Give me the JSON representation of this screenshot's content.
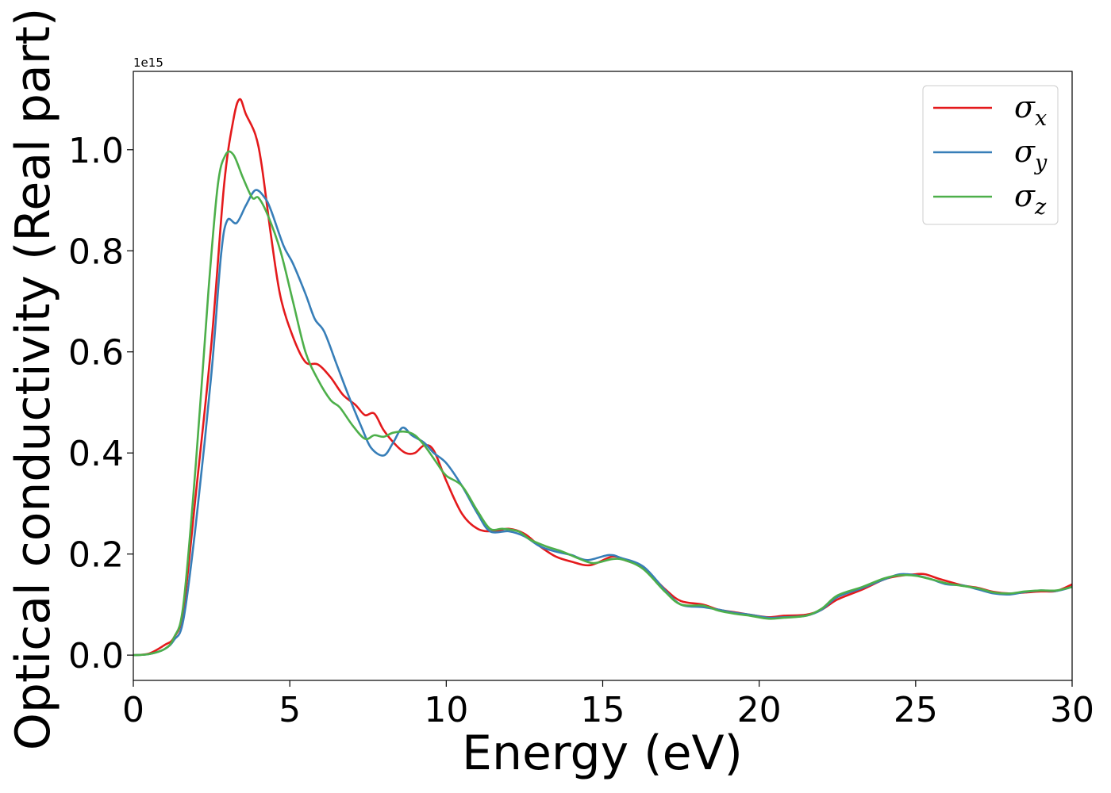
{
  "chart_data": {
    "type": "line",
    "xlabel": "Energy (eV)",
    "ylabel": "Optical conductivity (Real part)",
    "y_offset_label": "1e15",
    "xlim": [
      0,
      30
    ],
    "ylim": [
      -0.05,
      1.155
    ],
    "x_ticks": [
      0,
      5,
      10,
      15,
      20,
      25,
      30
    ],
    "x_tick_labels": [
      "0",
      "5",
      "10",
      "15",
      "20",
      "25",
      "30"
    ],
    "y_ticks": [
      0.0,
      0.2,
      0.4,
      0.6,
      0.8,
      1.0
    ],
    "y_tick_labels": [
      "0.0",
      "0.2",
      "0.4",
      "0.6",
      "0.8",
      "1.0"
    ],
    "grid": false,
    "legend_position": "top-right",
    "series": [
      {
        "name": "σx",
        "symbol": "σ",
        "subscript": "x",
        "color": "#e41a1c",
        "points": [
          [
            0,
            0
          ],
          [
            0.5,
            0.003
          ],
          [
            1.0,
            0.02
          ],
          [
            1.3,
            0.035
          ],
          [
            1.6,
            0.09
          ],
          [
            2.0,
            0.32
          ],
          [
            2.5,
            0.62
          ],
          [
            2.9,
            0.93
          ],
          [
            3.2,
            1.06
          ],
          [
            3.4,
            1.1
          ],
          [
            3.6,
            1.07
          ],
          [
            3.9,
            1.03
          ],
          [
            4.1,
            0.97
          ],
          [
            4.4,
            0.83
          ],
          [
            4.7,
            0.71
          ],
          [
            5.1,
            0.63
          ],
          [
            5.5,
            0.58
          ],
          [
            5.9,
            0.575
          ],
          [
            6.3,
            0.55
          ],
          [
            6.7,
            0.515
          ],
          [
            7.1,
            0.495
          ],
          [
            7.4,
            0.475
          ],
          [
            7.7,
            0.478
          ],
          [
            8.0,
            0.445
          ],
          [
            8.4,
            0.415
          ],
          [
            8.7,
            0.4
          ],
          [
            9.0,
            0.4
          ],
          [
            9.3,
            0.415
          ],
          [
            9.6,
            0.405
          ],
          [
            10.0,
            0.345
          ],
          [
            10.5,
            0.28
          ],
          [
            11.0,
            0.25
          ],
          [
            11.5,
            0.245
          ],
          [
            12.0,
            0.25
          ],
          [
            12.5,
            0.24
          ],
          [
            13.0,
            0.215
          ],
          [
            13.5,
            0.195
          ],
          [
            14.0,
            0.185
          ],
          [
            14.6,
            0.178
          ],
          [
            15.3,
            0.195
          ],
          [
            15.7,
            0.188
          ],
          [
            16.3,
            0.172
          ],
          [
            17.0,
            0.13
          ],
          [
            17.5,
            0.107
          ],
          [
            18.2,
            0.1
          ],
          [
            18.7,
            0.09
          ],
          [
            19.2,
            0.085
          ],
          [
            19.7,
            0.08
          ],
          [
            20.3,
            0.075
          ],
          [
            20.8,
            0.078
          ],
          [
            21.5,
            0.08
          ],
          [
            22.0,
            0.09
          ],
          [
            22.5,
            0.11
          ],
          [
            23.3,
            0.13
          ],
          [
            24.0,
            0.15
          ],
          [
            24.5,
            0.157
          ],
          [
            25.0,
            0.16
          ],
          [
            25.3,
            0.16
          ],
          [
            25.8,
            0.15
          ],
          [
            26.5,
            0.138
          ],
          [
            27.0,
            0.133
          ],
          [
            27.5,
            0.125
          ],
          [
            28.0,
            0.122
          ],
          [
            28.5,
            0.124
          ],
          [
            29.0,
            0.126
          ],
          [
            29.5,
            0.127
          ],
          [
            30,
            0.14
          ]
        ]
      },
      {
        "name": "σy",
        "symbol": "σ",
        "subscript": "y",
        "color": "#377eb8",
        "points": [
          [
            0,
            0
          ],
          [
            0.5,
            0.002
          ],
          [
            1.0,
            0.012
          ],
          [
            1.3,
            0.03
          ],
          [
            1.6,
            0.07
          ],
          [
            2.0,
            0.26
          ],
          [
            2.5,
            0.56
          ],
          [
            2.8,
            0.79
          ],
          [
            3.0,
            0.86
          ],
          [
            3.3,
            0.855
          ],
          [
            3.6,
            0.89
          ],
          [
            3.9,
            0.92
          ],
          [
            4.2,
            0.905
          ],
          [
            4.4,
            0.88
          ],
          [
            4.8,
            0.81
          ],
          [
            5.1,
            0.775
          ],
          [
            5.5,
            0.715
          ],
          [
            5.8,
            0.665
          ],
          [
            6.1,
            0.64
          ],
          [
            6.5,
            0.575
          ],
          [
            6.9,
            0.51
          ],
          [
            7.3,
            0.45
          ],
          [
            7.6,
            0.41
          ],
          [
            8.0,
            0.395
          ],
          [
            8.3,
            0.42
          ],
          [
            8.6,
            0.45
          ],
          [
            8.9,
            0.435
          ],
          [
            9.3,
            0.42
          ],
          [
            9.6,
            0.4
          ],
          [
            10.0,
            0.38
          ],
          [
            10.5,
            0.335
          ],
          [
            11.0,
            0.28
          ],
          [
            11.4,
            0.245
          ],
          [
            12.0,
            0.245
          ],
          [
            12.5,
            0.235
          ],
          [
            13.0,
            0.215
          ],
          [
            13.5,
            0.205
          ],
          [
            14.0,
            0.198
          ],
          [
            14.5,
            0.188
          ],
          [
            15.2,
            0.198
          ],
          [
            15.6,
            0.192
          ],
          [
            16.3,
            0.175
          ],
          [
            17.0,
            0.128
          ],
          [
            17.5,
            0.1
          ],
          [
            18.2,
            0.095
          ],
          [
            18.7,
            0.09
          ],
          [
            19.2,
            0.084
          ],
          [
            19.7,
            0.08
          ],
          [
            20.3,
            0.074
          ],
          [
            20.8,
            0.075
          ],
          [
            21.5,
            0.078
          ],
          [
            22.0,
            0.09
          ],
          [
            22.5,
            0.115
          ],
          [
            23.3,
            0.133
          ],
          [
            24.0,
            0.15
          ],
          [
            24.5,
            0.16
          ],
          [
            25.0,
            0.158
          ],
          [
            25.5,
            0.15
          ],
          [
            26.0,
            0.14
          ],
          [
            26.5,
            0.138
          ],
          [
            27.0,
            0.13
          ],
          [
            27.5,
            0.122
          ],
          [
            28.0,
            0.12
          ],
          [
            28.5,
            0.125
          ],
          [
            29.0,
            0.128
          ],
          [
            29.5,
            0.127
          ],
          [
            30,
            0.135
          ]
        ]
      },
      {
        "name": "σz",
        "symbol": "σ",
        "subscript": "z",
        "color": "#4daf4a",
        "points": [
          [
            0,
            0
          ],
          [
            0.5,
            0.002
          ],
          [
            1.0,
            0.012
          ],
          [
            1.3,
            0.035
          ],
          [
            1.6,
            0.1
          ],
          [
            2.0,
            0.38
          ],
          [
            2.4,
            0.72
          ],
          [
            2.7,
            0.93
          ],
          [
            2.95,
            0.99
          ],
          [
            3.2,
            0.99
          ],
          [
            3.5,
            0.945
          ],
          [
            3.8,
            0.905
          ],
          [
            4.0,
            0.905
          ],
          [
            4.3,
            0.87
          ],
          [
            4.7,
            0.8
          ],
          [
            5.1,
            0.7
          ],
          [
            5.5,
            0.6
          ],
          [
            5.9,
            0.545
          ],
          [
            6.3,
            0.505
          ],
          [
            6.6,
            0.49
          ],
          [
            7.0,
            0.455
          ],
          [
            7.4,
            0.428
          ],
          [
            7.7,
            0.435
          ],
          [
            8.0,
            0.432
          ],
          [
            8.3,
            0.44
          ],
          [
            8.7,
            0.442
          ],
          [
            9.0,
            0.435
          ],
          [
            9.3,
            0.415
          ],
          [
            9.7,
            0.38
          ],
          [
            10.0,
            0.355
          ],
          [
            10.5,
            0.335
          ],
          [
            11.0,
            0.285
          ],
          [
            11.4,
            0.25
          ],
          [
            11.8,
            0.25
          ],
          [
            12.3,
            0.245
          ],
          [
            12.7,
            0.228
          ],
          [
            13.2,
            0.215
          ],
          [
            13.7,
            0.205
          ],
          [
            14.2,
            0.192
          ],
          [
            14.7,
            0.182
          ],
          [
            15.3,
            0.19
          ],
          [
            15.7,
            0.188
          ],
          [
            16.3,
            0.17
          ],
          [
            17.0,
            0.125
          ],
          [
            17.5,
            0.1
          ],
          [
            18.2,
            0.098
          ],
          [
            18.7,
            0.088
          ],
          [
            19.2,
            0.082
          ],
          [
            19.7,
            0.078
          ],
          [
            20.3,
            0.072
          ],
          [
            20.8,
            0.074
          ],
          [
            21.5,
            0.078
          ],
          [
            22.0,
            0.092
          ],
          [
            22.5,
            0.118
          ],
          [
            23.3,
            0.135
          ],
          [
            24.0,
            0.152
          ],
          [
            24.5,
            0.158
          ],
          [
            25.0,
            0.157
          ],
          [
            25.5,
            0.15
          ],
          [
            26.0,
            0.142
          ],
          [
            26.5,
            0.137
          ],
          [
            27.0,
            0.132
          ],
          [
            27.5,
            0.124
          ],
          [
            28.0,
            0.122
          ],
          [
            28.5,
            0.126
          ],
          [
            29.0,
            0.128
          ],
          [
            29.5,
            0.128
          ],
          [
            30,
            0.135
          ]
        ]
      }
    ]
  }
}
